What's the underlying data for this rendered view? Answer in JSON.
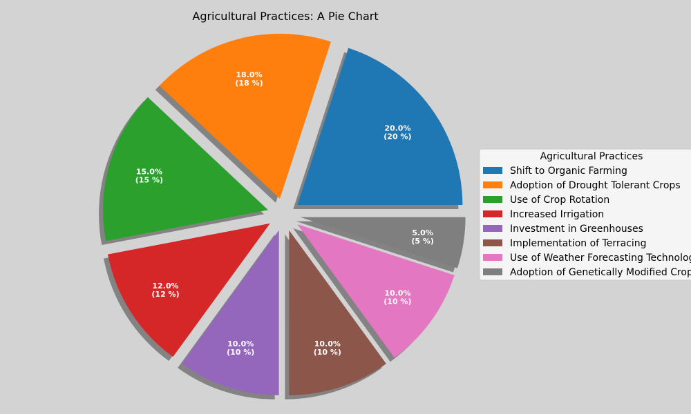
{
  "chart_data": {
    "type": "pie",
    "title": "Agricultural Practices: A Pie Chart",
    "legend_title": "Agricultural Practices",
    "legend_position": "center-right",
    "shadow": true,
    "exploded": true,
    "slices": [
      {
        "label": "Shift to Organic Farming",
        "value": 20,
        "pct_text": "20.0%",
        "abs_text": "(20 %)",
        "color": "#1f77b4"
      },
      {
        "label": "Adoption of Drought Tolerant Crops",
        "value": 18,
        "pct_text": "18.0%",
        "abs_text": "(18 %)",
        "color": "#ff7f0e"
      },
      {
        "label": "Use of Crop Rotation",
        "value": 15,
        "pct_text": "15.0%",
        "abs_text": "(15 %)",
        "color": "#2ca02c"
      },
      {
        "label": "Increased Irrigation",
        "value": 12,
        "pct_text": "12.0%",
        "abs_text": "(12 %)",
        "color": "#d62728"
      },
      {
        "label": "Investment in Greenhouses",
        "value": 10,
        "pct_text": "10.0%",
        "abs_text": "(10 %)",
        "color": "#9467bd"
      },
      {
        "label": "Implementation of Terracing",
        "value": 10,
        "pct_text": "10.0%",
        "abs_text": "(10 %)",
        "color": "#8c564b"
      },
      {
        "label": "Use of Weather Forecasting Technology",
        "value": 10,
        "pct_text": "10.0%",
        "abs_text": "(10 %)",
        "color": "#e377c2"
      },
      {
        "label": "Adoption of Genetically Modified Crops",
        "value": 5,
        "pct_text": "5.0%",
        "abs_text": "(5 %)",
        "color": "#7f7f7f"
      }
    ]
  }
}
